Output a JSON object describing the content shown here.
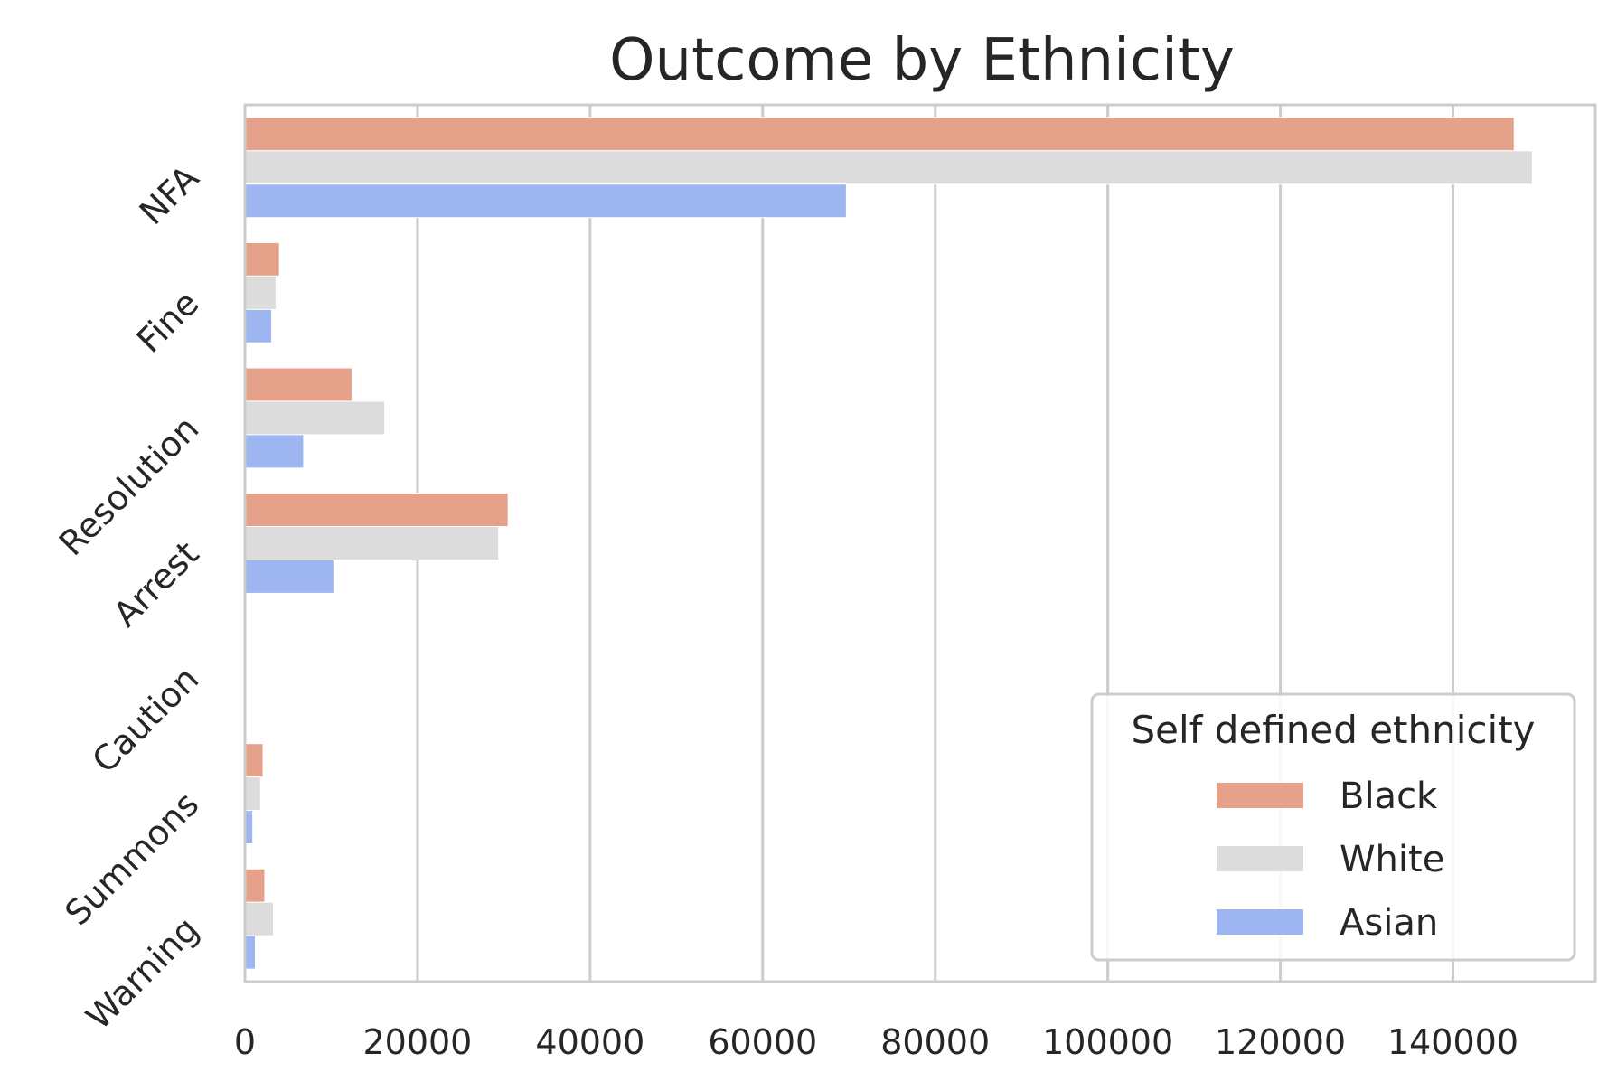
{
  "chart_data": {
    "type": "bar",
    "orientation": "horizontal",
    "title": "Outcome by Ethnicity",
    "xlabel": "",
    "ylabel": "",
    "categories": [
      "NFA",
      "Fine",
      "Resolution",
      "Arrest",
      "Caution",
      "Summons",
      "Warning"
    ],
    "series": [
      {
        "name": "Black",
        "color": "#e6a18a",
        "values": [
          147100,
          4000,
          12400,
          30500,
          0,
          2100,
          2300
        ]
      },
      {
        "name": "White",
        "color": "#dcdcdc",
        "values": [
          149200,
          3600,
          16200,
          29400,
          0,
          1800,
          3300
        ]
      },
      {
        "name": "Asian",
        "color": "#9db5f0",
        "values": [
          69700,
          3100,
          6800,
          10300,
          0,
          900,
          1200
        ]
      }
    ],
    "xlim": [
      0,
      156500
    ],
    "xticks": [
      0,
      20000,
      40000,
      60000,
      80000,
      100000,
      120000,
      140000
    ],
    "xtick_labels": [
      "0",
      "20000",
      "40000",
      "60000",
      "80000",
      "100000",
      "120000",
      "140000"
    ],
    "grid": "vertical",
    "legend": {
      "title": "Self defined ethnicity",
      "placement": "lower-right",
      "entries": [
        "Black",
        "White",
        "Asian"
      ]
    }
  }
}
